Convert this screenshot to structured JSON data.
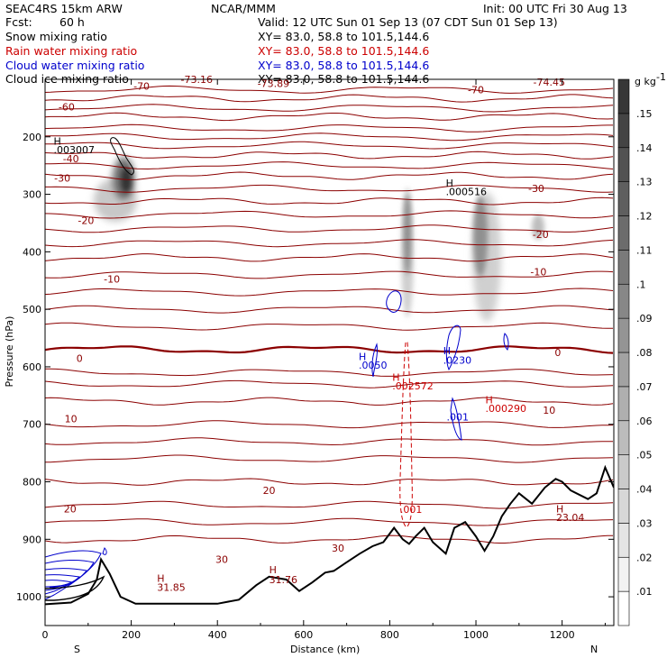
{
  "header": {
    "model": "SEAC4RS 15km ARW",
    "center": "NCAR/MMM",
    "init": "Init: 00 UTC Fri 30 Aug 13",
    "fcst_label": "Fcst:",
    "fcst_value": "60 h",
    "valid": "Valid: 12 UTC Sun 01 Sep 13 (07 CDT Sun 01 Sep 13)"
  },
  "fields": [
    {
      "name": "Snow mixing ratio",
      "xy": "XY=  83.0, 58.8 to 101.5,144.6",
      "color": "#000000"
    },
    {
      "name": "Rain water mixing ratio",
      "xy": "XY=  83.0, 58.8 to 101.5,144.6",
      "color": "#cc0000"
    },
    {
      "name": "Cloud water mixing ratio",
      "xy": "XY=  83.0, 58.8 to 101.5,144.6",
      "color": "#0000cc"
    },
    {
      "name": "Cloud ice mixing ratio",
      "xy": "XY=  83.0, 58.8 to 101.5,144.6",
      "color": "#000000"
    }
  ],
  "chart_data": {
    "type": "contour",
    "xlabel": "Distance (km)",
    "ylabel": "Pressure (hPa)",
    "xlim": [
      0,
      1320
    ],
    "ylim": [
      1050,
      100
    ],
    "xticks": [
      0,
      200,
      400,
      600,
      800,
      1000,
      1200
    ],
    "yticks": [
      200,
      300,
      400,
      500,
      600,
      700,
      800,
      900,
      1000
    ],
    "left_end_label": "S",
    "right_end_label": "N",
    "colorbar": {
      "unit": "g kg",
      "unit_exp": "-1",
      "levels": [
        ".01",
        ".02",
        ".03",
        ".04",
        ".05",
        ".06",
        ".07",
        ".08",
        ".09",
        ".1",
        ".11",
        ".12",
        ".13",
        ".14",
        ".15"
      ]
    },
    "isotherms": {
      "color": "#8b0000",
      "contours": [
        {
          "label": "-70",
          "p": 133
        },
        {
          "label": "-60",
          "p": 165
        },
        {
          "label": "-40",
          "p": 232
        },
        {
          "label": "-30",
          "p": 268
        },
        {
          "label": "-20",
          "p": 312
        },
        {
          "label": "-10",
          "p": 410
        },
        {
          "label": "0",
          "p": 570
        },
        {
          "label": "10",
          "p": 660
        },
        {
          "label": "20",
          "p": 800
        },
        {
          "label": "30",
          "p": 900
        }
      ],
      "extra_labels": [
        {
          "text": "-73.16",
          "x": 352,
          "p": 100
        },
        {
          "text": "-73.89",
          "x": 530,
          "p": 107
        },
        {
          "text": "-74.45",
          "x": 1170,
          "p": 105
        },
        {
          "text": "-70",
          "x": 224,
          "p": 112
        },
        {
          "text": "-70",
          "x": 1000,
          "p": 118
        },
        {
          "text": "-60",
          "x": 50,
          "p": 148
        },
        {
          "text": "-40",
          "x": 60,
          "p": 238
        },
        {
          "text": "-30",
          "x": 40,
          "p": 272
        },
        {
          "text": "-30",
          "x": 1140,
          "p": 290
        },
        {
          "text": "-20",
          "x": 95,
          "p": 345
        },
        {
          "text": "-20",
          "x": 1150,
          "p": 370
        },
        {
          "text": "-10",
          "x": 155,
          "p": 447
        },
        {
          "text": "-10",
          "x": 1145,
          "p": 435
        },
        {
          "text": "0",
          "x": 80,
          "p": 585
        },
        {
          "text": "0",
          "x": 1190,
          "p": 575
        },
        {
          "text": "10",
          "x": 60,
          "p": 690
        },
        {
          "text": "10",
          "x": 1170,
          "p": 675
        },
        {
          "text": "20",
          "x": 58,
          "p": 847
        },
        {
          "text": "20",
          "x": 520,
          "p": 815
        },
        {
          "text": "30",
          "x": 410,
          "p": 935
        },
        {
          "text": "30",
          "x": 680,
          "p": 915
        }
      ]
    },
    "terrain_p": [
      [
        0,
        1013
      ],
      [
        60,
        1010
      ],
      [
        100,
        995
      ],
      [
        120,
        970
      ],
      [
        130,
        935
      ],
      [
        150,
        960
      ],
      [
        175,
        1000
      ],
      [
        210,
        1012
      ],
      [
        300,
        1012
      ],
      [
        400,
        1012
      ],
      [
        450,
        1005
      ],
      [
        490,
        980
      ],
      [
        520,
        965
      ],
      [
        560,
        970
      ],
      [
        590,
        990
      ],
      [
        620,
        975
      ],
      [
        650,
        958
      ],
      [
        670,
        955
      ],
      [
        700,
        940
      ],
      [
        730,
        925
      ],
      [
        760,
        912
      ],
      [
        785,
        905
      ],
      [
        810,
        880
      ],
      [
        830,
        900
      ],
      [
        845,
        908
      ],
      [
        860,
        895
      ],
      [
        880,
        880
      ],
      [
        900,
        905
      ],
      [
        930,
        925
      ],
      [
        950,
        880
      ],
      [
        975,
        870
      ],
      [
        1000,
        895
      ],
      [
        1020,
        920
      ],
      [
        1040,
        895
      ],
      [
        1060,
        860
      ],
      [
        1080,
        838
      ],
      [
        1100,
        820
      ],
      [
        1130,
        838
      ],
      [
        1160,
        810
      ],
      [
        1185,
        795
      ],
      [
        1200,
        800
      ],
      [
        1220,
        815
      ],
      [
        1260,
        830
      ],
      [
        1280,
        820
      ],
      [
        1300,
        775
      ],
      [
        1320,
        810
      ]
    ],
    "highs": [
      {
        "text": "H",
        "x": 20,
        "p": 207,
        "color": "#000000"
      },
      {
        "text": ".003007",
        "x": 20,
        "p": 222,
        "color": "#000000"
      },
      {
        "text": "H",
        "x": 930,
        "p": 280,
        "color": "#000000"
      },
      {
        "text": ".000516",
        "x": 930,
        "p": 295,
        "color": "#000000"
      },
      {
        "text": "H",
        "x": 728,
        "p": 582,
        "color": "#0000cc"
      },
      {
        "text": ".0050",
        "x": 728,
        "p": 597,
        "color": "#0000cc"
      },
      {
        "text": "H",
        "x": 924,
        "p": 572,
        "color": "#0000cc"
      },
      {
        "text": ".0230",
        "x": 924,
        "p": 588,
        "color": "#0000cc"
      },
      {
        "text": ".001",
        "x": 932,
        "p": 687,
        "color": "#0000cc"
      },
      {
        "text": "H",
        "x": 806,
        "p": 618,
        "color": "#cc0000"
      },
      {
        "text": ".002572",
        "x": 806,
        "p": 633,
        "color": "#cc0000"
      },
      {
        "text": "H",
        "x": 1022,
        "p": 657,
        "color": "#cc0000"
      },
      {
        "text": ".000290",
        "x": 1022,
        "p": 672,
        "color": "#cc0000"
      },
      {
        "text": ".001",
        "x": 824,
        "p": 848,
        "color": "#cc0000"
      },
      {
        "text": "H",
        "x": 1186,
        "p": 847,
        "color": "#8b0000"
      },
      {
        "text": "23.04",
        "x": 1186,
        "p": 862,
        "color": "#8b0000"
      },
      {
        "text": "H",
        "x": 260,
        "p": 968,
        "color": "#8b0000"
      },
      {
        "text": "31.85",
        "x": 260,
        "p": 983,
        "color": "#8b0000"
      },
      {
        "text": "H",
        "x": 520,
        "p": 953,
        "color": "#8b0000"
      },
      {
        "text": "31.76",
        "x": 520,
        "p": 970,
        "color": "#8b0000"
      }
    ]
  }
}
